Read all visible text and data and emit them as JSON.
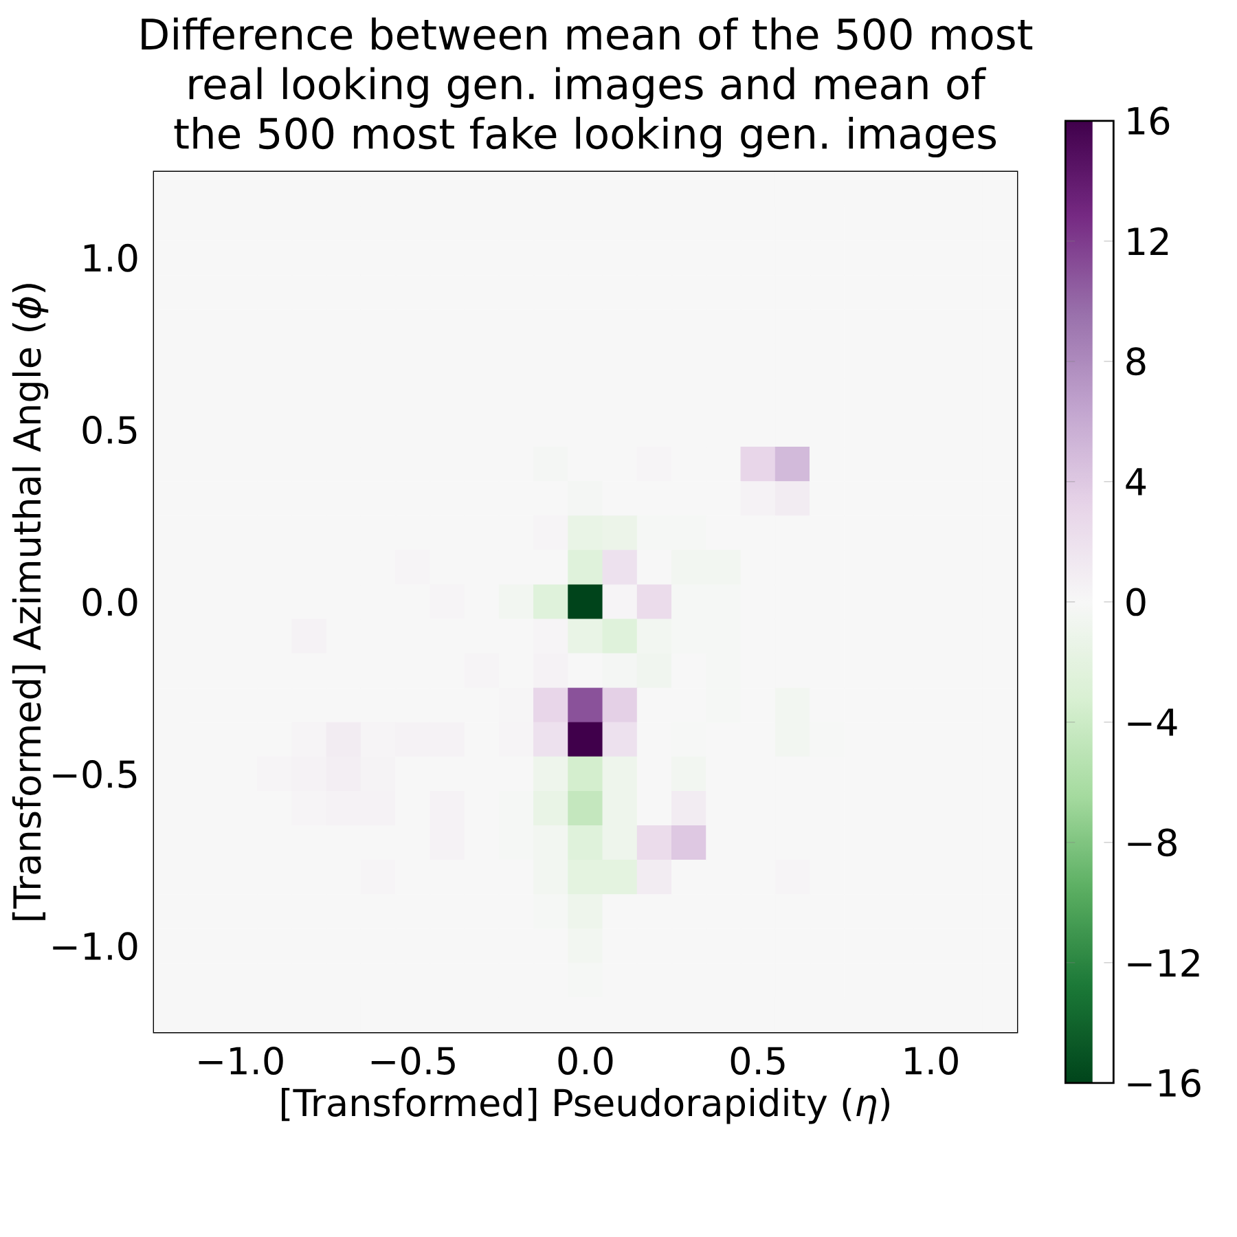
{
  "chart_data": {
    "type": "heatmap",
    "title": "Difference between mean of the 500 most real looking gen. images and mean of the 500 most fake looking gen. images",
    "xlabel": "[Transformed] Pseudorapidity (*η*)",
    "ylabel": "[Transformed] Azimuthal Angle (*ϕ*)",
    "xlim": [
      -1.25,
      1.25
    ],
    "ylim": [
      -1.25,
      1.25
    ],
    "xticks": [
      {
        "value": -1.0,
        "label": "−1.0"
      },
      {
        "value": -0.5,
        "label": "−0.5"
      },
      {
        "value": 0.0,
        "label": "0.0"
      },
      {
        "value": 0.5,
        "label": "0.5"
      },
      {
        "value": 1.0,
        "label": "1.0"
      }
    ],
    "yticks": [
      {
        "value": -1.0,
        "label": "−1.0"
      },
      {
        "value": -0.5,
        "label": "−0.5"
      },
      {
        "value": 0.0,
        "label": "0.0"
      },
      {
        "value": 0.5,
        "label": "0.5"
      },
      {
        "value": 1.0,
        "label": "1.0"
      }
    ],
    "clim": [
      -16,
      16
    ],
    "cticks": [
      {
        "value": -16,
        "label": "−16"
      },
      {
        "value": -12,
        "label": "−12"
      },
      {
        "value": -8,
        "label": "−8"
      },
      {
        "value": -4,
        "label": "−4"
      },
      0,
      4,
      8,
      12,
      16
    ],
    "cells": [
      [
        0,
        0,
        0,
        0,
        0,
        0,
        0,
        0,
        0,
        0,
        0,
        0,
        0,
        0,
        0,
        0,
        0,
        0,
        0,
        0,
        0,
        0,
        0,
        0,
        0
      ],
      [
        0,
        0,
        0,
        0,
        0,
        0,
        0,
        0,
        0,
        0,
        0,
        0,
        0,
        0,
        0,
        0,
        0,
        0,
        0,
        0,
        0,
        0,
        0,
        0,
        0
      ],
      [
        0,
        0,
        0,
        0,
        0,
        0,
        0,
        0,
        0,
        0,
        0,
        0,
        0,
        0,
        0,
        0,
        0,
        0,
        0,
        0,
        0,
        0,
        0,
        0,
        0
      ],
      [
        0,
        0,
        0,
        0,
        0,
        0,
        0,
        0,
        0,
        0,
        0,
        0,
        0,
        0,
        0,
        0,
        0,
        0,
        0,
        0,
        0,
        0,
        0,
        0,
        0
      ],
      [
        0,
        0,
        0,
        0,
        0,
        0,
        0,
        0,
        0,
        0,
        0,
        0,
        0,
        0,
        0,
        0,
        0,
        0,
        0,
        0,
        0,
        0,
        0,
        0,
        0
      ],
      [
        0,
        0,
        0,
        0,
        0,
        0,
        0,
        0,
        0,
        0,
        0,
        0,
        0,
        0,
        0,
        0,
        0,
        0,
        0,
        0,
        0,
        0,
        0,
        0,
        0
      ],
      [
        0,
        0,
        0,
        0,
        0,
        0,
        0,
        0,
        0,
        0,
        0,
        0,
        0,
        0,
        0,
        0,
        0,
        0,
        0,
        0,
        0,
        0,
        0,
        0,
        0
      ],
      [
        0,
        0,
        0,
        0,
        0,
        0,
        0,
        0,
        0,
        0,
        0,
        0,
        0,
        0,
        0,
        0,
        0,
        0,
        0,
        0,
        0,
        0,
        0,
        0,
        0
      ],
      [
        0,
        0,
        0,
        0,
        0,
        0,
        0,
        0,
        0,
        0,
        0,
        -0.3,
        0,
        0,
        0.3,
        0,
        0,
        3,
        5,
        0,
        0,
        0,
        0,
        0,
        0
      ],
      [
        0,
        0,
        0,
        0,
        0,
        0,
        0,
        0,
        0,
        0,
        0,
        0,
        -0.3,
        0,
        0,
        0,
        0,
        0.5,
        1,
        0,
        0,
        0,
        0,
        0,
        0
      ],
      [
        0,
        0,
        0,
        0,
        0,
        0,
        0,
        0,
        0,
        0,
        0,
        0.3,
        -1.5,
        -1.2,
        -0.2,
        -0.2,
        0,
        0,
        0,
        0,
        0,
        0,
        0,
        0,
        0
      ],
      [
        0,
        0,
        0,
        0,
        0,
        0,
        0,
        0.3,
        0,
        0,
        0,
        0,
        -2.5,
        2,
        0,
        -0.5,
        -0.5,
        0,
        0,
        0,
        0,
        0,
        0,
        0,
        0
      ],
      [
        0,
        0,
        0,
        0,
        0,
        0,
        0,
        0,
        0.3,
        0,
        -0.5,
        -2.5,
        -16,
        0.3,
        2.5,
        -0.2,
        -0.2,
        0,
        0,
        0,
        0,
        0,
        0,
        0,
        0
      ],
      [
        0,
        0,
        0,
        0,
        0.5,
        0,
        0,
        0,
        0,
        0,
        0,
        0.3,
        -1.5,
        -2.5,
        -0.5,
        -0.2,
        -0.2,
        0,
        0,
        0,
        0,
        0,
        0,
        0,
        0
      ],
      [
        0,
        0,
        0,
        0,
        0,
        0,
        0,
        0,
        0,
        0.3,
        0,
        0.5,
        0,
        -0.3,
        -0.7,
        0,
        -0.2,
        0,
        0,
        0,
        0,
        0,
        0,
        0,
        0
      ],
      [
        0,
        0,
        0,
        0,
        0,
        0,
        0,
        0,
        0,
        0,
        0.2,
        3,
        11,
        3.5,
        0,
        0,
        -0.2,
        0,
        -0.5,
        0,
        0,
        0,
        0,
        0,
        0
      ],
      [
        0,
        0,
        0,
        0,
        0.3,
        1,
        0.3,
        0.5,
        0.5,
        0,
        0.3,
        2,
        16,
        2,
        0,
        -0.1,
        0,
        0,
        -0.5,
        -0.1,
        0,
        0,
        0,
        0,
        0
      ],
      [
        0,
        0,
        0,
        0.3,
        0.5,
        0.8,
        0.4,
        0,
        0,
        0,
        0,
        -1,
        -3.5,
        -1,
        0,
        -0.5,
        0,
        0,
        0,
        0,
        0,
        0,
        0,
        0,
        0
      ],
      [
        0,
        0,
        0,
        0,
        0.3,
        0.5,
        0.5,
        0,
        0.5,
        0,
        -0.2,
        -1.5,
        -4.5,
        -1,
        0,
        1,
        0,
        0,
        0,
        0,
        0,
        0,
        0,
        0,
        0
      ],
      [
        0,
        0,
        0,
        0,
        0,
        0,
        0,
        0,
        0.5,
        0,
        -0.2,
        -0.5,
        -2.5,
        -1,
        2.5,
        4,
        0,
        0,
        0,
        0,
        0,
        0,
        0,
        0,
        0
      ],
      [
        0,
        0,
        0,
        0,
        0,
        0,
        0.3,
        0,
        0,
        0,
        0,
        -0.5,
        -2,
        -2,
        1,
        0,
        0,
        0,
        0.3,
        0,
        0,
        0,
        0,
        0,
        0
      ],
      [
        0,
        0,
        0,
        0,
        0,
        0,
        0,
        0,
        0,
        0,
        0,
        -0.2,
        -1,
        0,
        0,
        0,
        0,
        0,
        0,
        0,
        0,
        0,
        0,
        0,
        0
      ],
      [
        0,
        0,
        0,
        0,
        0,
        0,
        0,
        0,
        0,
        0,
        0,
        0,
        -0.5,
        0,
        0,
        0,
        0,
        0,
        0,
        0,
        0,
        0,
        0,
        0,
        0
      ],
      [
        0,
        0,
        0,
        0,
        0,
        0,
        0,
        0,
        0,
        0,
        0,
        0,
        -0.2,
        0,
        0,
        0,
        0,
        0,
        0,
        0,
        0,
        0,
        0,
        0,
        0
      ],
      [
        0,
        0,
        0,
        0,
        0,
        0,
        0,
        0,
        0,
        0,
        0,
        0,
        0,
        0,
        0,
        0,
        0,
        0,
        0,
        0,
        0,
        0,
        0,
        0,
        0
      ]
    ]
  }
}
